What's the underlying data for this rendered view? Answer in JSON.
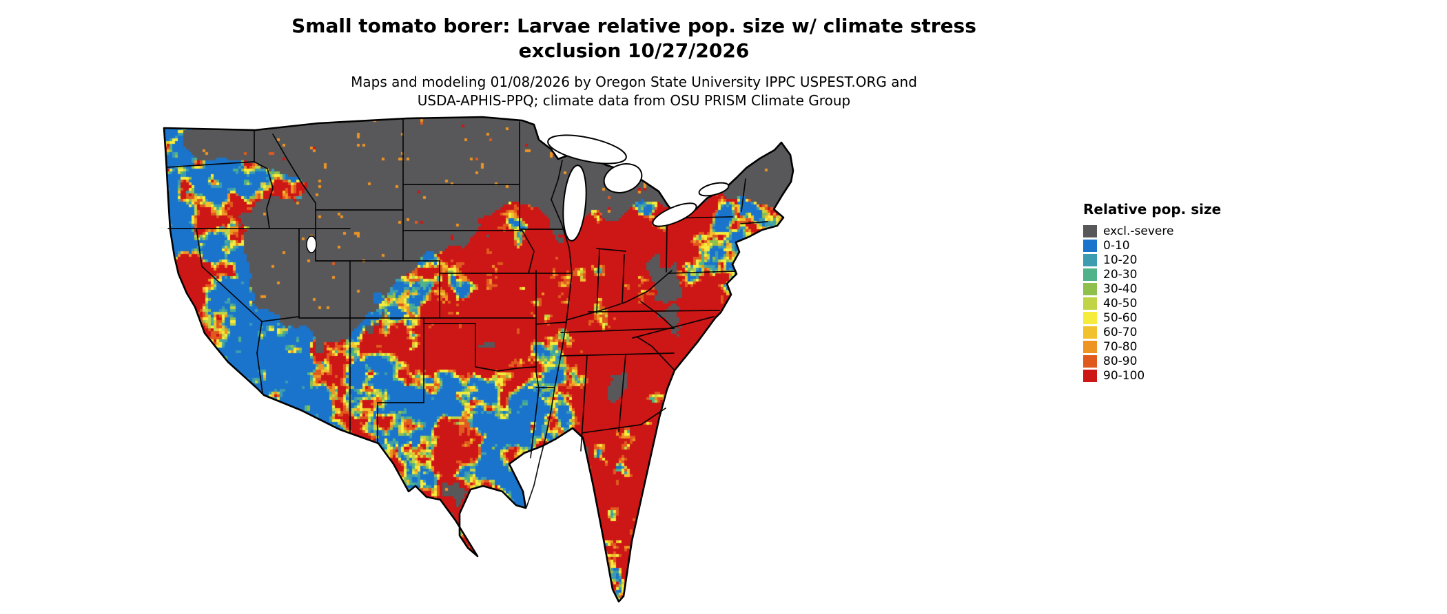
{
  "title": {
    "lines": [
      "Small tomato borer: Larvae relative pop. size w/ climate stress",
      "exclusion 10/27/2026"
    ]
  },
  "subtitle": {
    "lines": [
      "Maps and modeling 01/08/2026 by Oregon State University IPPC USPEST.ORG and",
      "USDA-APHIS-PPQ; climate data from OSU PRISM Climate Group"
    ]
  },
  "map": {
    "alt": "Choropleth raster map of the contiguous United States showing larvae relative population size",
    "outline_color": "#000000",
    "water_color": "#ffffff",
    "background_color": "#ffffff"
  },
  "legend": {
    "title": "Relative pop. size",
    "items": [
      {
        "label": "excl.-severe",
        "color": "#58585a"
      },
      {
        "label": "0-10",
        "color": "#1b74cb"
      },
      {
        "label": "10-20",
        "color": "#3d9cb0"
      },
      {
        "label": "20-30",
        "color": "#4fb289"
      },
      {
        "label": "30-40",
        "color": "#8fbf4d"
      },
      {
        "label": "40-50",
        "color": "#c0d445"
      },
      {
        "label": "50-60",
        "color": "#f5ec3d"
      },
      {
        "label": "60-70",
        "color": "#f2c12e"
      },
      {
        "label": "70-80",
        "color": "#ee9422"
      },
      {
        "label": "80-90",
        "color": "#e05a1e"
      },
      {
        "label": "90-100",
        "color": "#cd1616"
      }
    ]
  }
}
